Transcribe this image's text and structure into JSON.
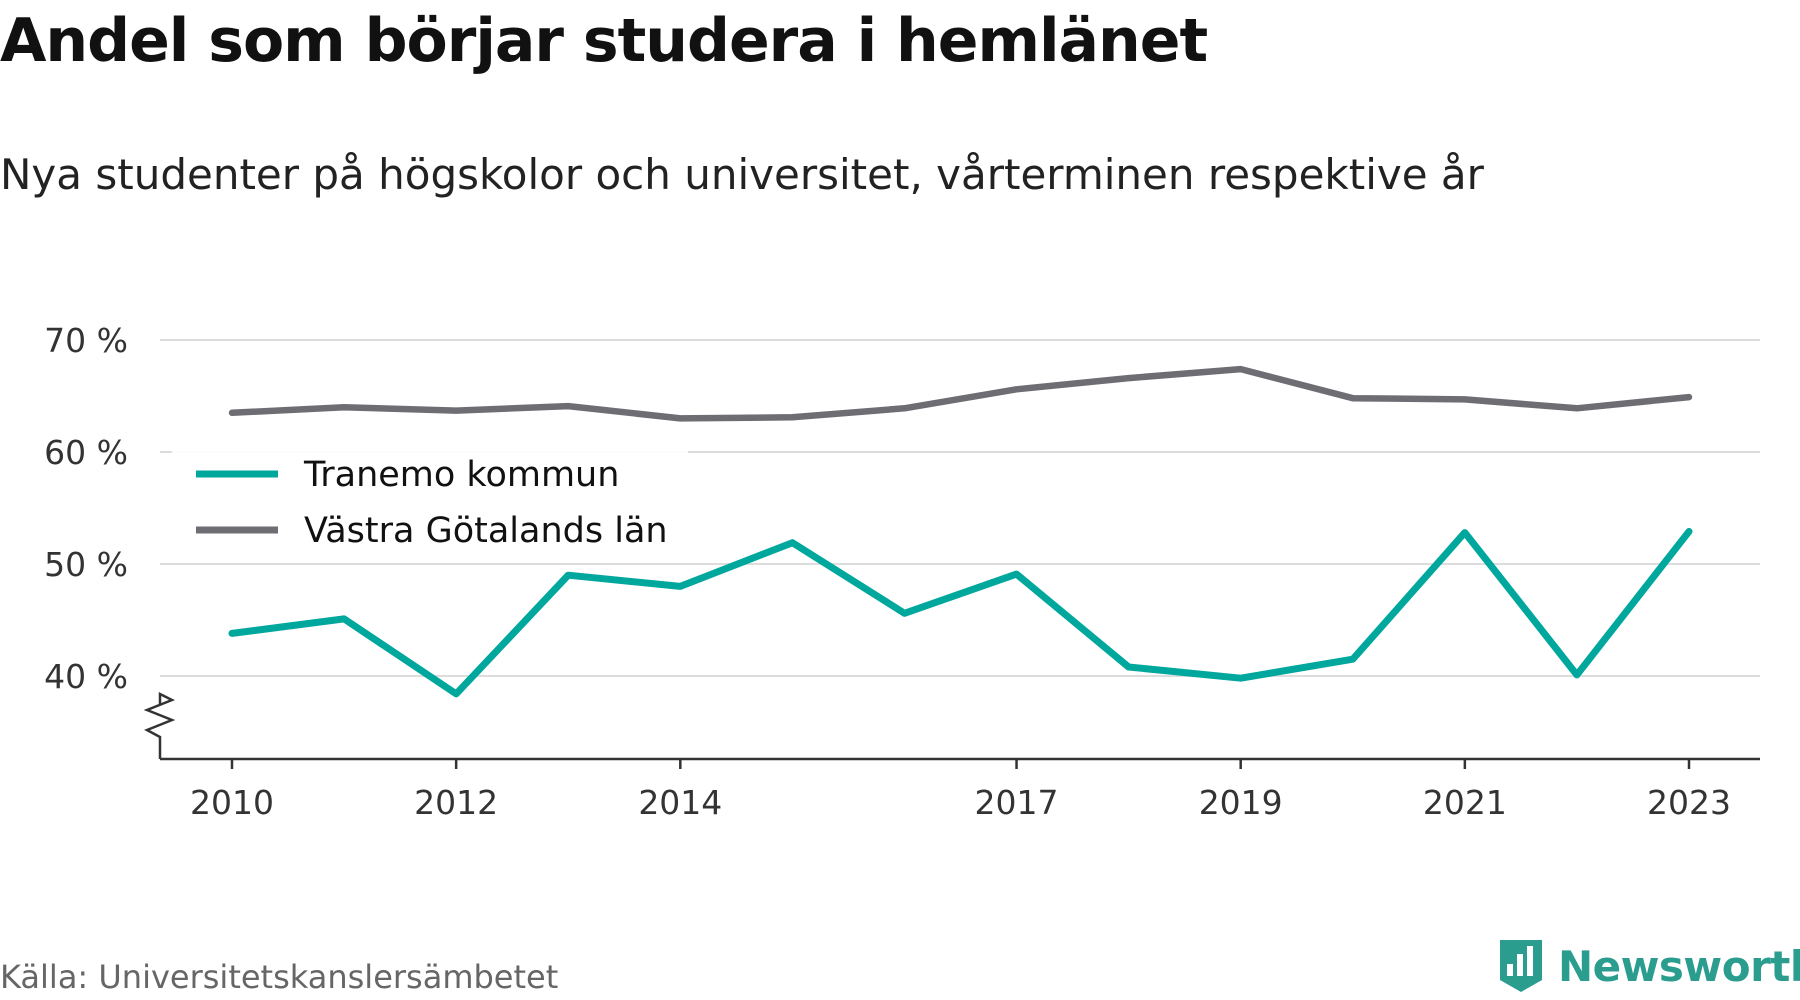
{
  "title": "Andel som börjar studera i hemlänet",
  "subtitle": "Nya studenter på högskolor och universitet, vårterminen respektive år",
  "source": "Källa: Universitetskanslersämbetet",
  "brand": {
    "name": "Newsworthy",
    "icon": "newsworthy-logo-icon",
    "color": "#2a9d8f"
  },
  "chart_data": {
    "type": "line",
    "title": "Andel som börjar studera i hemlänet",
    "subtitle": "Nya studenter på högskolor och universitet, vårterminen respektive år",
    "x": [
      2010,
      2011,
      2012,
      2013,
      2014,
      2015,
      2016,
      2017,
      2018,
      2019,
      2020,
      2021,
      2022,
      2023
    ],
    "x_tick_labels": [
      "2010",
      "2012",
      "2014",
      "2017",
      "2019",
      "2021",
      "2023"
    ],
    "y_ticks": [
      40,
      50,
      60,
      70
    ],
    "y_tick_labels": [
      "40 %",
      "50 %",
      "60 %",
      "70 %"
    ],
    "ylim": [
      33,
      70
    ],
    "y_axis_break": true,
    "grid": true,
    "legend_position": "left, inside plot",
    "series": [
      {
        "name": "Tranemo kommun",
        "color": "#00a79d",
        "values": [
          43.8,
          45.1,
          38.4,
          49.0,
          48.0,
          51.9,
          45.6,
          49.1,
          40.8,
          39.8,
          41.5,
          52.8,
          40.1,
          52.9
        ]
      },
      {
        "name": "Västra Götalands län",
        "color": "#6e6d74",
        "values": [
          63.5,
          64.0,
          63.7,
          64.1,
          63.0,
          63.1,
          63.9,
          65.6,
          66.6,
          67.4,
          64.8,
          64.7,
          63.9,
          64.9
        ]
      }
    ]
  }
}
